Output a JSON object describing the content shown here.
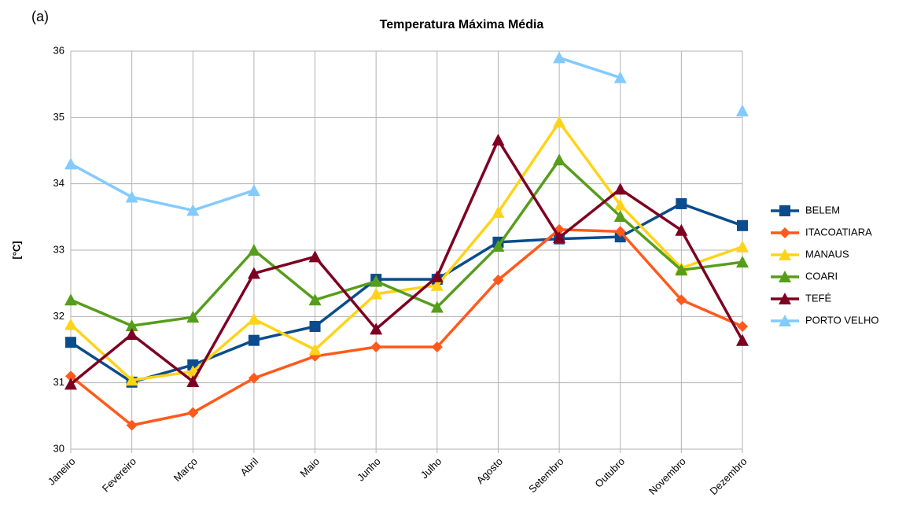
{
  "chart_data": {
    "type": "line",
    "title": "Temperatura Máxima Média",
    "annotation": "(a)",
    "y_label": "[°C]",
    "categories": [
      "Janeiro",
      "Fevereiro",
      "Março",
      "Abril",
      "Maio",
      "Junho",
      "Julho",
      "Agosto",
      "Setembro",
      "Outubro",
      "Novembro",
      "Dezembro"
    ],
    "ylim": [
      30,
      36
    ],
    "yticks": [
      30,
      31,
      32,
      33,
      34,
      35,
      36
    ],
    "grid": true,
    "legend": "right",
    "series": [
      {
        "name": "BELEM",
        "color": "#0a4c8c",
        "marker": "square",
        "values": [
          31.61,
          31.01,
          31.27,
          31.64,
          31.85,
          32.56,
          32.56,
          33.12,
          33.17,
          33.2,
          33.7,
          33.37
        ]
      },
      {
        "name": "ITACOATIARA",
        "color": "#ff5a1c",
        "marker": "diamond",
        "values": [
          31.1,
          30.36,
          30.55,
          31.07,
          31.4,
          31.54,
          31.54,
          32.55,
          33.31,
          33.28,
          32.25,
          31.85
        ]
      },
      {
        "name": "MANAUS",
        "color": "#ffd319",
        "marker": "triangle",
        "values": [
          31.88,
          31.04,
          31.17,
          31.96,
          31.5,
          32.34,
          32.47,
          33.57,
          34.93,
          33.68,
          32.73,
          33.05
        ]
      },
      {
        "name": "COARI",
        "color": "#579d1c",
        "marker": "triangle",
        "values": [
          32.25,
          31.86,
          31.99,
          33.0,
          32.25,
          32.53,
          32.14,
          33.06,
          34.36,
          33.51,
          32.7,
          32.82
        ]
      },
      {
        "name": "TEFÉ",
        "color": "#7e0021",
        "marker": "triangle",
        "values": [
          30.98,
          31.73,
          31.02,
          32.65,
          32.9,
          31.81,
          32.6,
          34.66,
          33.19,
          33.92,
          33.3,
          31.64
        ]
      },
      {
        "name": "PORTO VELHO",
        "color": "#83caff",
        "marker": "triangle",
        "values": [
          34.3,
          33.8,
          33.6,
          33.9,
          null,
          null,
          null,
          null,
          35.9,
          35.6,
          null,
          35.1
        ]
      }
    ]
  }
}
